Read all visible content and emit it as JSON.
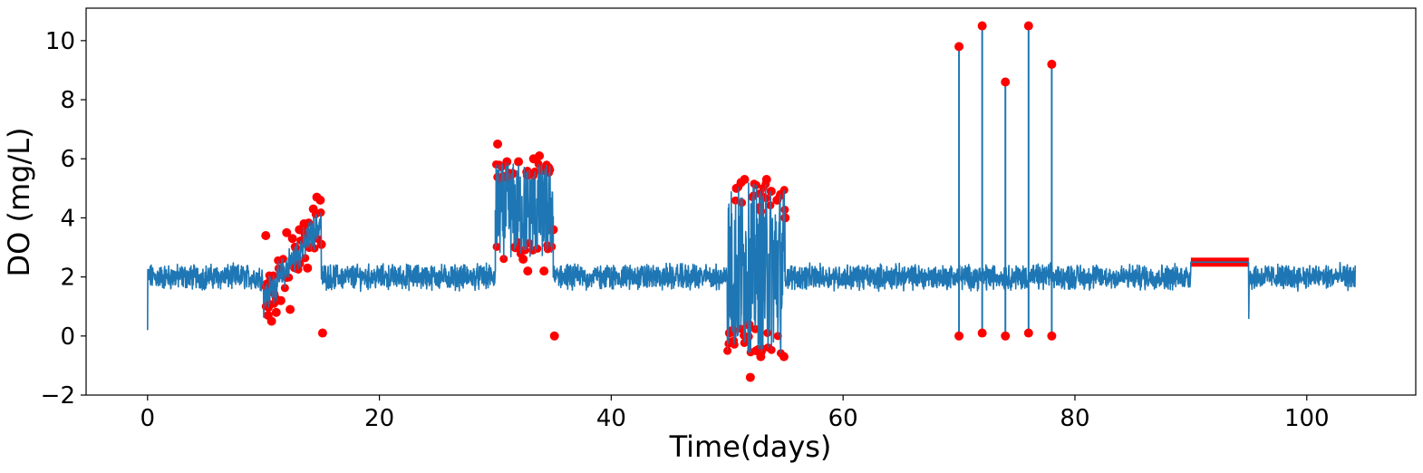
{
  "chart_data": {
    "type": "line",
    "title": "",
    "xlabel": "Time(days)",
    "ylabel": "DO (mg/L)",
    "xlim": [
      -5.3,
      109.4
    ],
    "ylim": [
      -2,
      11.1
    ],
    "xticks": [
      0,
      20,
      40,
      60,
      80,
      100
    ],
    "yticks": [
      -2,
      0,
      2,
      4,
      6,
      8,
      10
    ],
    "xtick_labels": [
      "0",
      "20",
      "40",
      "60",
      "80",
      "100"
    ],
    "ytick_labels": [
      "−2",
      "0",
      "2",
      "4",
      "6",
      "8",
      "10"
    ],
    "grid": false,
    "legend": "none",
    "line_color": "#1f77b4",
    "anomaly_color": "#ff0000",
    "series": [
      {
        "kind": "line",
        "baseline": 2.0,
        "noise_amplitude": 0.33,
        "x_range": [
          0,
          104.2
        ],
        "segments": [
          {
            "x": [
              0,
              10
            ],
            "pattern": "baseline"
          },
          {
            "x": [
              10,
              15
            ],
            "pattern": "drift",
            "from": [
              0.8,
              1.7
            ],
            "to": [
              3.4,
              4.3
            ],
            "amplitude": 0.85
          },
          {
            "x": [
              15,
              30
            ],
            "pattern": "baseline"
          },
          {
            "x": [
              30,
              35
            ],
            "pattern": "level_shift",
            "low": 2.6,
            "high": 5.9
          },
          {
            "x": [
              35,
              50
            ],
            "pattern": "baseline"
          },
          {
            "x": [
              50,
              55
            ],
            "pattern": "high_variance",
            "low": -0.6,
            "high": 5.2
          },
          {
            "x": [
              55,
              90
            ],
            "pattern": "baseline"
          },
          {
            "x": [
              90,
              95
            ],
            "pattern": "constant",
            "value": 2.5
          },
          {
            "x": [
              95,
              104.2
            ],
            "pattern": "baseline"
          }
        ]
      },
      {
        "kind": "anomaly_points",
        "marked_points": [
          {
            "x": 10.2,
            "y": 3.4
          },
          {
            "x": 10.4,
            "y": 0.7
          },
          {
            "x": 10.7,
            "y": 0.5
          },
          {
            "x": 11.1,
            "y": 0.8
          },
          {
            "x": 11.5,
            "y": 1.2
          },
          {
            "x": 12.0,
            "y": 3.5
          },
          {
            "x": 12.3,
            "y": 0.9
          },
          {
            "x": 12.5,
            "y": 3.3
          },
          {
            "x": 13.1,
            "y": 3.6
          },
          {
            "x": 13.5,
            "y": 3.8
          },
          {
            "x": 13.8,
            "y": 2.3
          },
          {
            "x": 14.3,
            "y": 4.3
          },
          {
            "x": 14.6,
            "y": 4.7
          },
          {
            "x": 14.9,
            "y": 4.6
          },
          {
            "x": 15.0,
            "y": 3.1
          },
          {
            "x": 15.1,
            "y": 0.1
          },
          {
            "x": 30.2,
            "y": 6.5
          },
          {
            "x": 30.7,
            "y": 5.4
          },
          {
            "x": 31.0,
            "y": 5.9
          },
          {
            "x": 31.5,
            "y": 5.5
          },
          {
            "x": 32.0,
            "y": 5.9
          },
          {
            "x": 32.4,
            "y": 2.6
          },
          {
            "x": 32.8,
            "y": 2.2
          },
          {
            "x": 33.3,
            "y": 6.0
          },
          {
            "x": 33.8,
            "y": 6.1
          },
          {
            "x": 34.2,
            "y": 2.2
          },
          {
            "x": 34.6,
            "y": 5.7
          },
          {
            "x": 35.0,
            "y": 3.6
          },
          {
            "x": 35.1,
            "y": 0.0
          },
          {
            "x": 50.2,
            "y": 0.1
          },
          {
            "x": 50.4,
            "y": -0.2
          },
          {
            "x": 50.8,
            "y": 5.0
          },
          {
            "x": 51.2,
            "y": 5.2
          },
          {
            "x": 51.5,
            "y": 5.3
          },
          {
            "x": 52.0,
            "y": -1.4
          },
          {
            "x": 52.5,
            "y": -0.5
          },
          {
            "x": 52.9,
            "y": -0.7
          },
          {
            "x": 53.4,
            "y": 5.3
          },
          {
            "x": 53.8,
            "y": 4.9
          },
          {
            "x": 54.3,
            "y": 4.6
          },
          {
            "x": 54.9,
            "y": -0.7
          },
          {
            "x": 55.0,
            "y": 4.0
          },
          {
            "x": 70.0,
            "y": 9.8
          },
          {
            "x": 70.0,
            "y": 0.0
          },
          {
            "x": 72.0,
            "y": 10.5
          },
          {
            "x": 72.0,
            "y": 0.1
          },
          {
            "x": 74.0,
            "y": 8.6
          },
          {
            "x": 74.0,
            "y": 0.0
          },
          {
            "x": 76.0,
            "y": 10.5
          },
          {
            "x": 76.0,
            "y": 0.1
          },
          {
            "x": 78.0,
            "y": 9.2
          },
          {
            "x": 78.0,
            "y": 0.0
          }
        ]
      }
    ]
  }
}
